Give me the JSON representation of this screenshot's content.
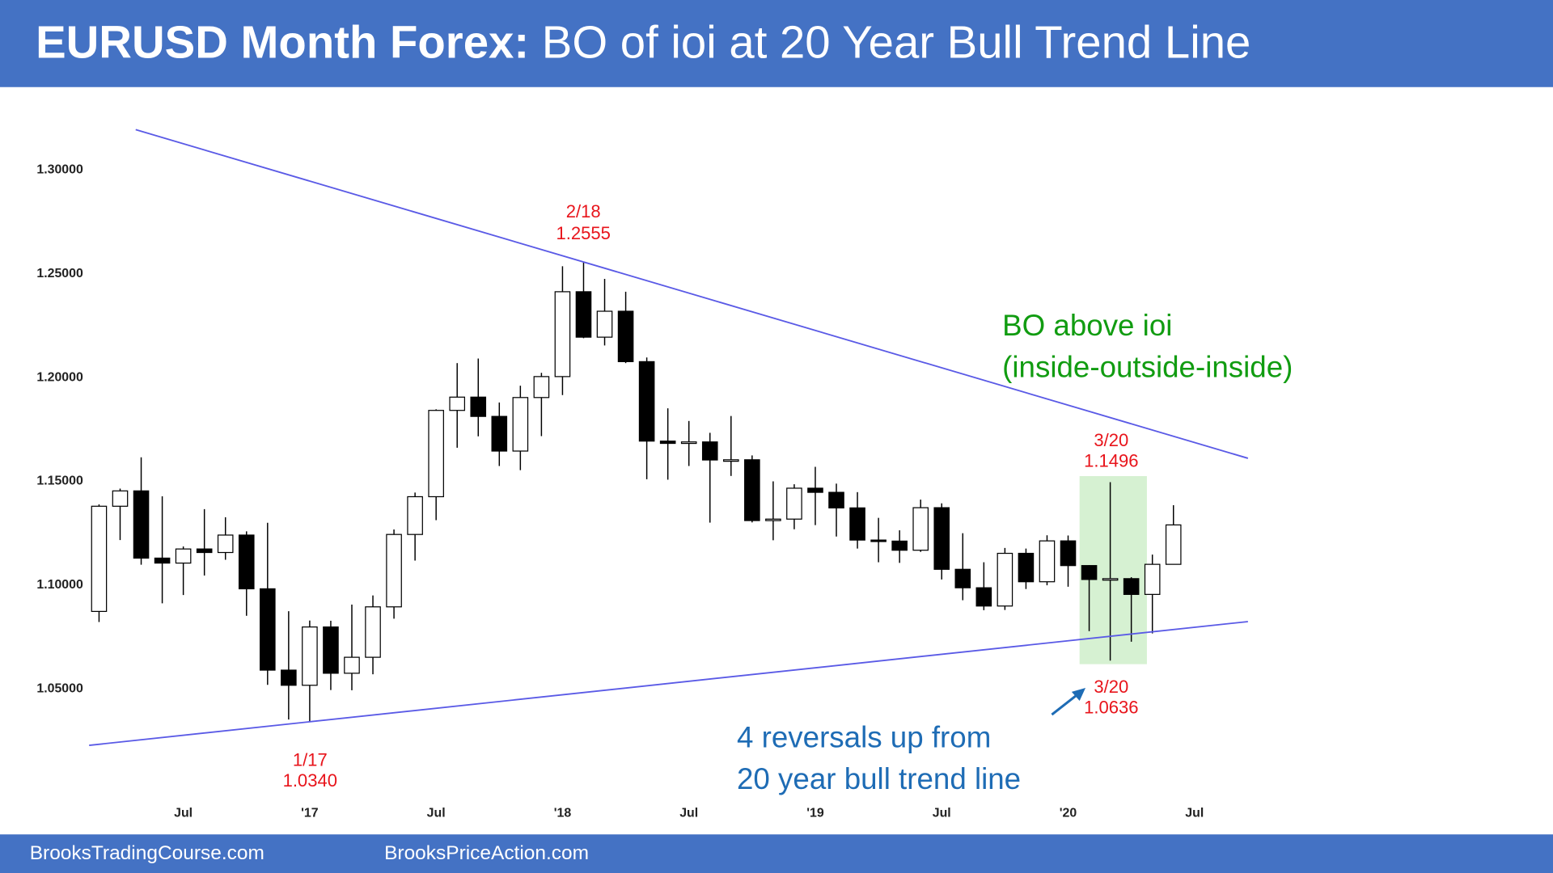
{
  "header": {
    "title_bold": "EURUSD Month Forex:",
    "title_rest": "BO of ioi at 20 Year Bull Trend Line"
  },
  "footer": [
    "BrooksTradingCourse.com",
    "BrooksPriceAction.com"
  ],
  "chart_data": {
    "type": "candlestick",
    "categories": [
      null,
      null,
      null,
      null,
      "Jul",
      null,
      null,
      null,
      null,
      null,
      "'17",
      null,
      null,
      null,
      null,
      null,
      "Jul",
      null,
      null,
      null,
      null,
      null,
      "'18",
      null,
      null,
      null,
      null,
      null,
      "Jul",
      null,
      null,
      null,
      null,
      null,
      "'19",
      null,
      null,
      null,
      null,
      null,
      "Jul",
      null,
      null,
      null,
      null,
      null,
      "'20",
      null,
      null,
      null,
      null,
      null,
      "Jul"
    ],
    "open": [
      1.0873,
      1.138,
      1.1454,
      1.113,
      1.1106,
      1.1174,
      1.1157,
      1.1241,
      1.0982,
      1.059,
      1.0517,
      1.0798,
      1.0575,
      1.0652,
      1.0895,
      1.1244,
      1.1426,
      1.1842,
      1.1906,
      1.1813,
      1.1646,
      1.1904,
      1.2005,
      1.2414,
      1.2195,
      1.232,
      1.2077,
      1.1694,
      1.1683,
      1.169,
      1.1603,
      1.1604,
      1.1311,
      1.1318,
      1.1467,
      1.1447,
      1.1372,
      1.1217,
      1.1212,
      1.1168,
      1.1373,
      1.1076,
      1.0987,
      1.0899,
      1.1153,
      1.1016,
      1.1213,
      1.1094,
      1.1027,
      1.1031,
      1.0955,
      1.11,
      null
    ],
    "high": [
      1.1389,
      1.1465,
      1.1616,
      1.1428,
      1.1186,
      1.1366,
      1.1327,
      1.1259,
      1.13,
      1.0874,
      1.0829,
      1.0828,
      1.0906,
      1.095,
      1.1268,
      1.1446,
      1.1847,
      1.207,
      1.2092,
      1.188,
      1.1961,
      1.2023,
      1.2537,
      1.2555,
      1.2476,
      1.2414,
      1.2097,
      1.1852,
      1.1791,
      1.1734,
      1.1815,
      1.1625,
      1.15,
      1.1486,
      1.157,
      1.1489,
      1.1448,
      1.1324,
      1.1264,
      1.1412,
      1.1394,
      1.125,
      1.111,
      1.1179,
      1.1176,
      1.124,
      1.1239,
      1.1096,
      1.1496,
      1.1038,
      1.1147,
      1.1385,
      null
    ],
    "low": [
      1.0822,
      1.1217,
      1.1098,
      1.0912,
      1.0952,
      1.1046,
      1.1122,
      1.0852,
      1.0519,
      1.0352,
      1.034,
      1.0494,
      1.0493,
      1.057,
      1.0838,
      1.1118,
      1.1313,
      1.1662,
      1.1717,
      1.1574,
      1.1554,
      1.1718,
      1.1916,
      1.219,
      1.2155,
      1.207,
      1.151,
      1.1508,
      1.1574,
      1.1301,
      1.1526,
      1.1302,
      1.1216,
      1.1269,
      1.1289,
      1.1234,
      1.1176,
      1.111,
      1.1107,
      1.116,
      1.1027,
      1.0927,
      1.0879,
      1.088,
      1.0981,
      1.0999,
      1.0992,
      1.0778,
      1.0636,
      1.0727,
      1.0767,
      1.11,
      null
    ],
    "close": [
      1.138,
      1.1454,
      1.113,
      1.1106,
      1.1174,
      1.1157,
      1.1241,
      1.0982,
      1.059,
      1.0517,
      1.0798,
      1.0575,
      1.0652,
      1.0895,
      1.1244,
      1.1426,
      1.1842,
      1.1906,
      1.1813,
      1.1646,
      1.1904,
      1.2005,
      1.2414,
      1.2195,
      1.232,
      1.2077,
      1.1694,
      1.1683,
      1.169,
      1.1603,
      1.1604,
      1.1311,
      1.1318,
      1.1467,
      1.1447,
      1.1372,
      1.1217,
      1.1212,
      1.1168,
      1.1373,
      1.1076,
      1.0987,
      1.0899,
      1.1153,
      1.1016,
      1.1213,
      1.1094,
      1.1027,
      1.1031,
      1.0955,
      1.11,
      1.129,
      null
    ],
    "up_color": "#ffffff",
    "down_color": "#000000",
    "ylim": [
      1.0,
      1.32
    ],
    "yticks": [
      {
        "value": 1.05,
        "label": "1.05000"
      },
      {
        "value": 1.1,
        "label": "1.10000"
      },
      {
        "value": 1.15,
        "label": "1.15000"
      },
      {
        "value": 1.2,
        "label": "1.20000"
      },
      {
        "value": 1.25,
        "label": "1.25000"
      },
      {
        "value": 1.3,
        "label": "1.30000"
      }
    ],
    "grid": false,
    "annotations": [
      "2/18",
      "1.2555",
      "1/17",
      "1.0340",
      "3/20",
      "1.1496",
      "3/20",
      "1.0636",
      "BO above ioi",
      "(inside-outside-inside)",
      "4 reversals up from",
      "20 year bull trend line"
    ]
  }
}
